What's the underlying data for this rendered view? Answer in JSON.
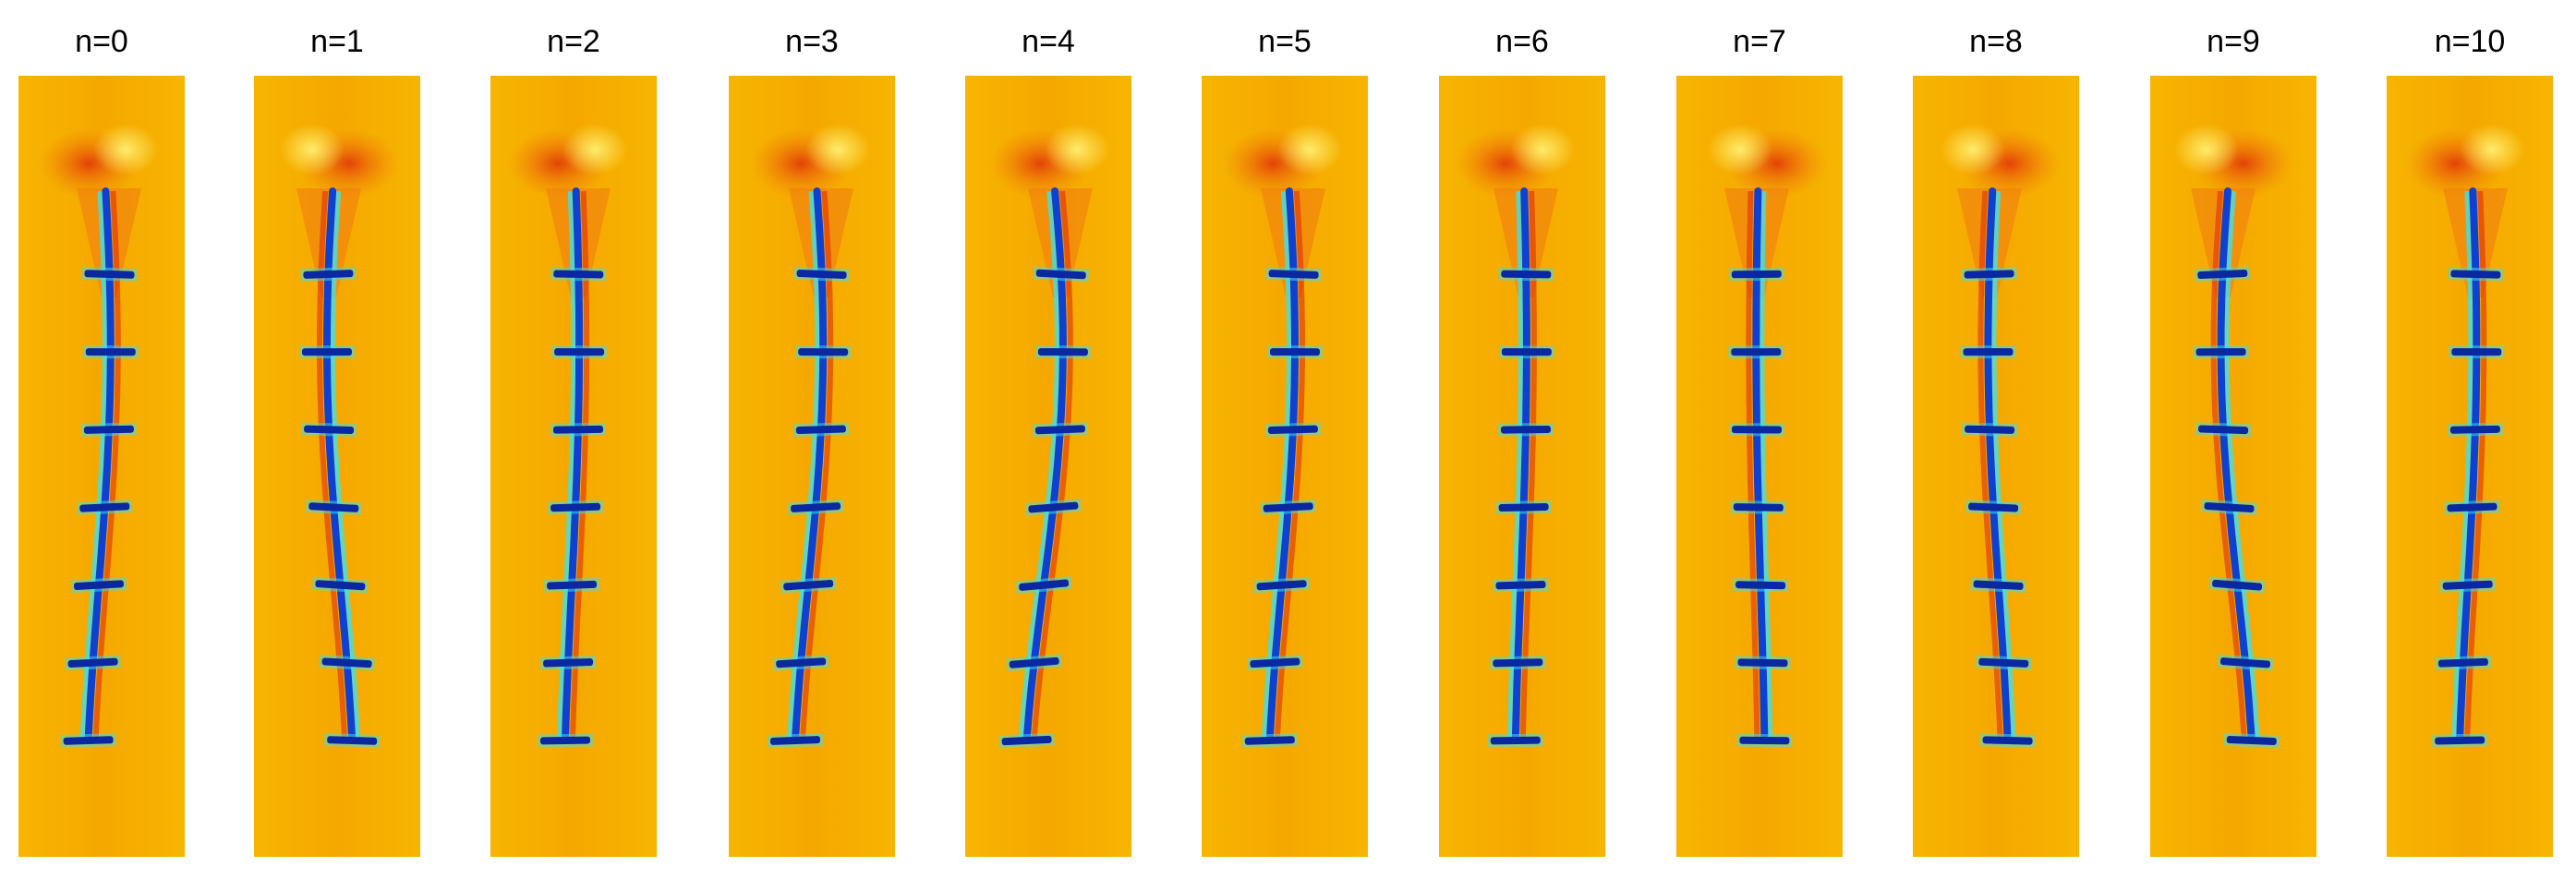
{
  "figure": {
    "panels": [
      {
        "label": "n=0",
        "sway": 0.8
      },
      {
        "label": "n=1",
        "sway": -0.9
      },
      {
        "label": "n=2",
        "sway": 0.5
      },
      {
        "label": "n=3",
        "sway": 1.0
      },
      {
        "label": "n=4",
        "sway": 1.3
      },
      {
        "label": "n=5",
        "sway": 0.9
      },
      {
        "label": "n=6",
        "sway": 0.4
      },
      {
        "label": "n=7",
        "sway": -0.3
      },
      {
        "label": "n=8",
        "sway": -0.7
      },
      {
        "label": "n=9",
        "sway": -1.1
      },
      {
        "label": "n=10",
        "sway": 0.6
      }
    ],
    "field_colors": {
      "background": "#f7b500",
      "warm": "#f07a10",
      "hot": "#e03008",
      "cool": "#fff070",
      "cyan": "#40e0e8",
      "body": "#1040d0",
      "body_dark": "#0a28a0"
    },
    "segments": 7
  }
}
